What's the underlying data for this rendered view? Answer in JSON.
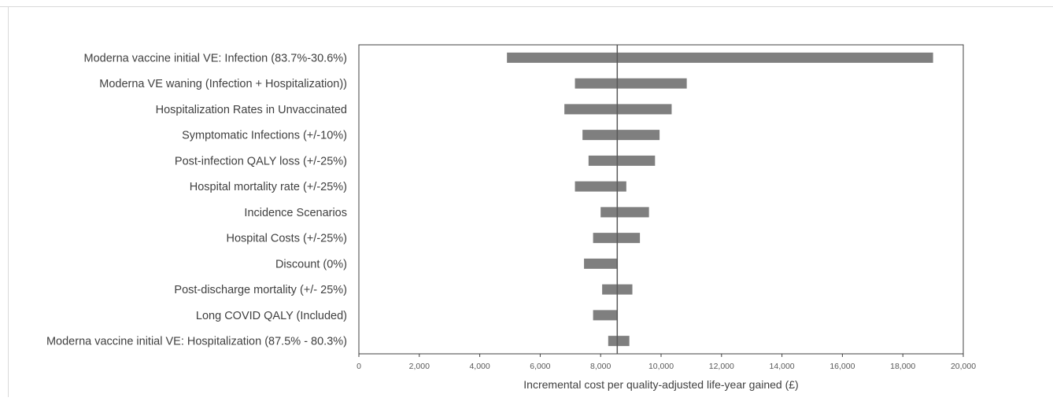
{
  "chart_data": {
    "type": "tornado",
    "title": "",
    "xlabel": "Incremental cost per quality-adjusted life-year gained (£)",
    "ylabel": "",
    "xlim": [
      0,
      20000
    ],
    "x_ticks": [
      "0",
      "2,000",
      "4,000",
      "6,000",
      "8,000",
      "10,000",
      "12,000",
      "14,000",
      "16,000",
      "18,000",
      "20,000"
    ],
    "base_value": 8550,
    "grid": false,
    "legend": "none",
    "bar_color": "#7f7f7f",
    "categories": [
      "Moderna vaccine initial VE: Infection (83.7%-30.6%)",
      "Moderna VE waning (Infection + Hospitalization))",
      "Hospitalization Rates in Unvaccinated",
      "Symptomatic Infections (+/-10%)",
      "Post-infection QALY loss (+/-25%)",
      "Hospital mortality rate (+/-25%)",
      "Incidence Scenarios",
      "Hospital Costs (+/-25%)",
      "Discount (0%)",
      "Post-discharge mortality (+/- 25%)",
      "Long COVID QALY (Included)",
      "Moderna vaccine initial VE: Hospitalization (87.5% - 80.3%)"
    ],
    "ranges": [
      [
        4900,
        19000
      ],
      [
        7150,
        10850
      ],
      [
        6800,
        10350
      ],
      [
        7400,
        9950
      ],
      [
        7600,
        9800
      ],
      [
        7150,
        8850
      ],
      [
        8000,
        9600
      ],
      [
        7750,
        9300
      ],
      [
        7450,
        8550
      ],
      [
        8050,
        9050
      ],
      [
        7750,
        8550
      ],
      [
        8250,
        8950
      ]
    ]
  }
}
